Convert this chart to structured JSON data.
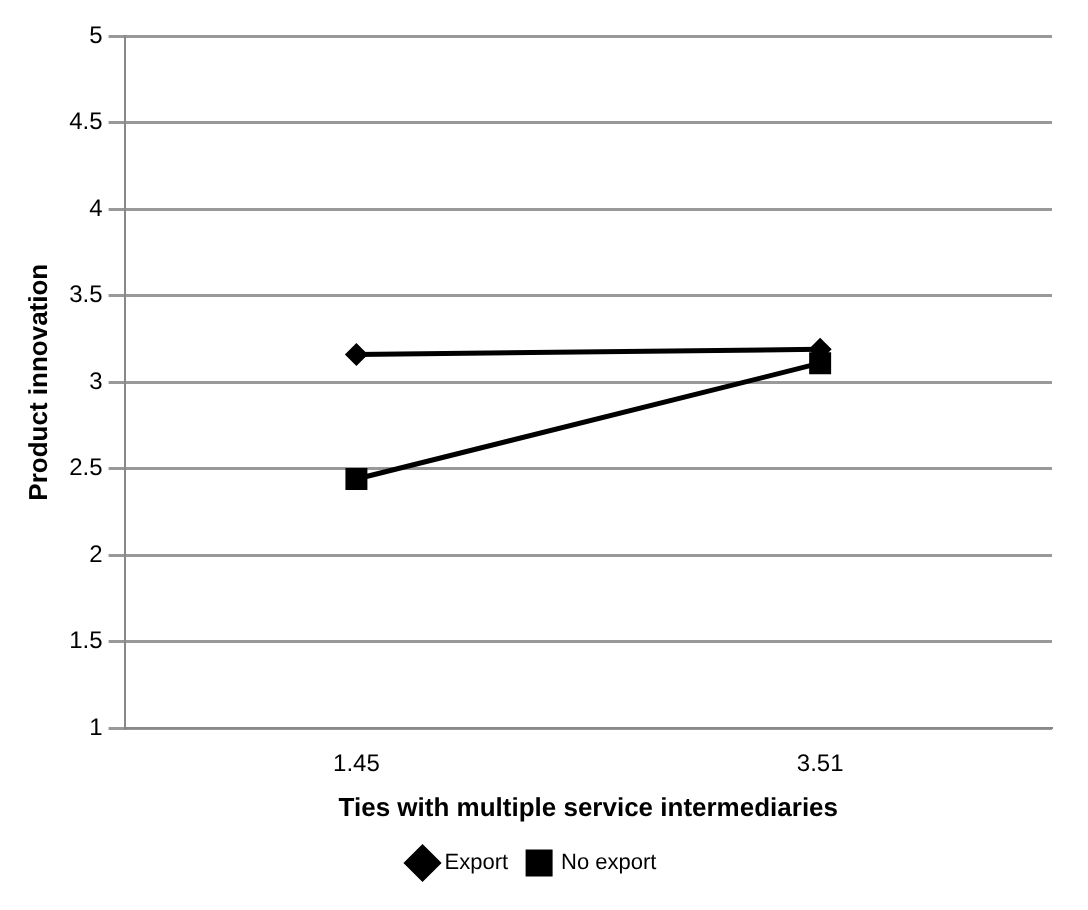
{
  "chart_data": {
    "type": "line",
    "xlabel": "Ties with multiple service intermediaries",
    "ylabel": "Product innovation",
    "categories": [
      "1.45",
      "3.51"
    ],
    "series": [
      {
        "name": "Export",
        "color": "#000000",
        "values": [
          3.16,
          3.19
        ],
        "marker": "diamond"
      },
      {
        "name": "No export",
        "color": "#000000",
        "values": [
          2.44,
          3.11
        ],
        "marker": "square"
      }
    ],
    "ylim": [
      1,
      5
    ],
    "yticks": [
      1,
      1.5,
      2,
      2.5,
      3,
      3.5,
      4,
      4.5,
      5
    ],
    "grid": "y",
    "legend": "bottom",
    "line_style": "solid"
  }
}
